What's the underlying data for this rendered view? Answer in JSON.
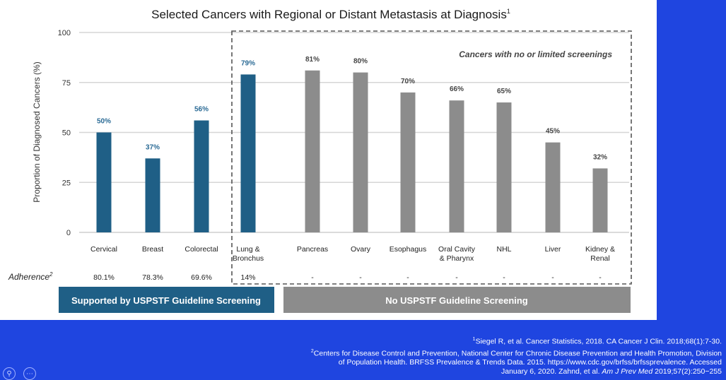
{
  "chart_data": {
    "type": "bar",
    "title": "Selected Cancers with Regional or Distant Metastasis at Diagnosis",
    "title_sup": "1",
    "ylabel": "Proportion of Diagnosed Cancers (%)",
    "ylim": [
      0,
      100
    ],
    "yticks": [
      0,
      25,
      50,
      75,
      100
    ],
    "grid": true,
    "categories": [
      "Cervical",
      "Breast",
      "Colorectal",
      "Lung & Bronchus",
      "Pancreas",
      "Ovary",
      "Esophagus",
      "Oral Cavity & Pharynx",
      "NHL",
      "Liver",
      "Kidney & Renal"
    ],
    "values": [
      50,
      37,
      56,
      79,
      81,
      80,
      70,
      66,
      65,
      45,
      32
    ],
    "value_labels": [
      "50%",
      "37%",
      "56%",
      "79%",
      "81%",
      "80%",
      "70%",
      "66%",
      "65%",
      "45%",
      "32%"
    ],
    "screening_group": [
      "supported",
      "supported",
      "supported",
      "supported",
      "none",
      "none",
      "none",
      "none",
      "none",
      "none",
      "none"
    ],
    "colors": {
      "supported": "#1f5f86",
      "none": "#8c8c8c",
      "label_supported": "#2a6a95",
      "label_none": "#444444"
    },
    "annotation": "Cancers with no or limited screenings",
    "adherence": {
      "label": "Adherence",
      "label_sup": "2",
      "values": [
        "80.1%",
        "78.3%",
        "69.6%",
        "14%",
        "-",
        "-",
        "-",
        "-",
        "-",
        "-",
        "-"
      ]
    }
  },
  "legend": {
    "supported": "Supported by USPSTF Guideline Screening",
    "none": "No USPSTF Guideline Screening"
  },
  "footer": {
    "ref1_sup": "1",
    "ref1": "Siegel R, et al. Cancer Statistics, 2018. CA Cancer J Clin. 2018;68(1):7-30.",
    "ref2_sup": "2",
    "ref2_line1": "Centers for Disease Control and Prevention, National Center for Chronic Disease Prevention and Health Promotion, Division",
    "ref2_line2": "of Population Health. BRFSS Prevalence & Trends Data. 2015. https://www.cdc.gov/brfss/brfssprevalence. Accessed",
    "ref2_line3a": "January 6, 2020. Zahnd, et al. ",
    "ref2_line3_italic": "Am J Prev Med",
    "ref2_line3b": " 2019;57(2):250−255"
  }
}
